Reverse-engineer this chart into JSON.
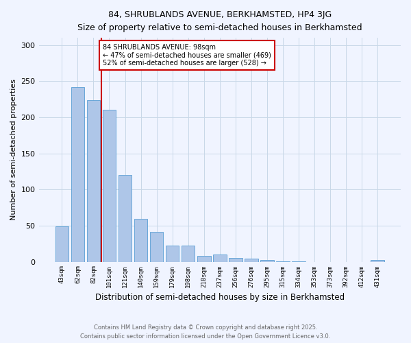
{
  "title_line1": "84, SHRUBLANDS AVENUE, BERKHAMSTED, HP4 3JG",
  "title_line2": "Size of property relative to semi-detached houses in Berkhamsted",
  "xlabel": "Distribution of semi-detached houses by size in Berkhamsted",
  "ylabel": "Number of semi-detached properties",
  "categories": [
    "43sqm",
    "62sqm",
    "82sqm",
    "101sqm",
    "121sqm",
    "140sqm",
    "159sqm",
    "179sqm",
    "198sqm",
    "218sqm",
    "237sqm",
    "256sqm",
    "276sqm",
    "295sqm",
    "315sqm",
    "334sqm",
    "353sqm",
    "373sqm",
    "392sqm",
    "412sqm",
    "431sqm"
  ],
  "values": [
    49,
    242,
    224,
    210,
    120,
    59,
    41,
    22,
    22,
    8,
    10,
    5,
    4,
    2,
    1,
    1,
    0,
    0,
    0,
    0,
    2
  ],
  "bar_color": "#aec6e8",
  "bar_edge_color": "#5a9fd4",
  "red_line_x": 2.5,
  "red_line_color": "#cc0000",
  "annotation_text": "84 SHRUBLANDS AVENUE: 98sqm\n← 47% of semi-detached houses are smaller (469)\n52% of semi-detached houses are larger (528) →",
  "annotation_box_edge": "#cc0000",
  "ylim": [
    0,
    310
  ],
  "yticks": [
    0,
    50,
    100,
    150,
    200,
    250,
    300
  ],
  "footer_line1": "Contains HM Land Registry data © Crown copyright and database right 2025.",
  "footer_line2": "Contains public sector information licensed under the Open Government Licence v3.0.",
  "bg_color": "#f0f4ff",
  "grid_color": "#c8d8e8"
}
